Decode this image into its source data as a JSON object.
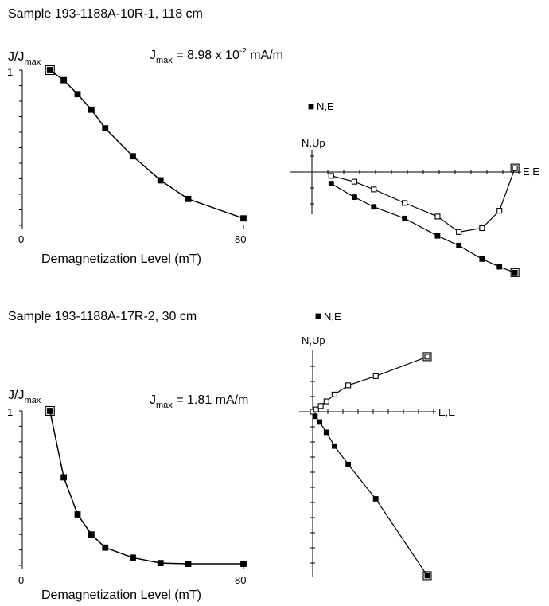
{
  "chart_data": [
    {
      "type": "line",
      "panel": "demag",
      "sample": "Sample 193-1188A-10R-1, 118 cm",
      "ylabel": "J/J",
      "ylabel_sub": "max",
      "jmax_base": "J",
      "jmax_sub": "max",
      "jmax_text": " = 8.98 x 10",
      "jmax_sup": "-2",
      "jmax_unit": " mA/m",
      "xlabel": "Demagnetization Level (mT)",
      "xlim": [
        0,
        80
      ],
      "ylim": [
        0,
        1
      ],
      "x_tick_labels": [
        "0",
        "80"
      ],
      "y_tick_labels": [
        "1"
      ],
      "series": [
        {
          "x": [
            10,
            15,
            20,
            25,
            30,
            40,
            50,
            60,
            80
          ],
          "y": [
            1.0,
            0.935,
            0.845,
            0.745,
            0.625,
            0.445,
            0.29,
            0.17,
            0.045
          ]
        }
      ]
    },
    {
      "type": "scatter",
      "panel": "zijderveld",
      "legend": "N,E",
      "vertical_label": "N,Up",
      "horizontal_label": "E,E",
      "series": [
        {
          "marker": "filled",
          "x": [
            0.1,
            0.22,
            0.32,
            0.48,
            0.65,
            0.76,
            0.88,
            0.97,
            1.05
          ],
          "y": [
            -0.06,
            -0.13,
            -0.18,
            -0.24,
            -0.33,
            -0.38,
            -0.45,
            -0.49,
            -0.52
          ]
        },
        {
          "marker": "open",
          "x": [
            0.1,
            0.22,
            0.32,
            0.48,
            0.65,
            0.76,
            0.88,
            0.97,
            1.05
          ],
          "y": [
            -0.02,
            -0.05,
            -0.09,
            -0.16,
            -0.23,
            -0.31,
            -0.29,
            -0.2,
            0.02
          ]
        }
      ]
    },
    {
      "type": "line",
      "panel": "demag",
      "sample": "Sample 193-1188A-17R-2, 30 cm",
      "ylabel": "J/J",
      "ylabel_sub": "max",
      "jmax_base": "J",
      "jmax_sub": "max",
      "jmax_text": " = 1.81 mA/m",
      "jmax_sup": "",
      "jmax_unit": "",
      "xlabel": "Demagnetization Level (mT)",
      "xlim": [
        0,
        80
      ],
      "ylim": [
        0,
        1
      ],
      "x_tick_labels": [
        "0",
        "80"
      ],
      "y_tick_labels": [
        "1"
      ],
      "series": [
        {
          "x": [
            10,
            15,
            20,
            25,
            30,
            40,
            50,
            60,
            80
          ],
          "y": [
            1.0,
            0.57,
            0.33,
            0.2,
            0.115,
            0.05,
            0.015,
            0.01,
            0.01
          ]
        }
      ]
    },
    {
      "type": "scatter",
      "panel": "zijderveld",
      "legend": "N,E",
      "vertical_label": "N,Up",
      "horizontal_label": "E,E",
      "series": [
        {
          "marker": "filled",
          "x": [
            0.0,
            0.02,
            0.06,
            0.12,
            0.19,
            0.31,
            0.55,
            1.0
          ],
          "y": [
            0.0,
            -0.04,
            -0.09,
            -0.18,
            -0.3,
            -0.46,
            -0.76,
            -1.43
          ]
        },
        {
          "marker": "open",
          "x": [
            0.0,
            0.03,
            0.07,
            0.12,
            0.19,
            0.31,
            0.55,
            1.0
          ],
          "y": [
            0.0,
            0.02,
            0.05,
            0.09,
            0.15,
            0.23,
            0.31,
            0.48
          ]
        }
      ]
    }
  ]
}
